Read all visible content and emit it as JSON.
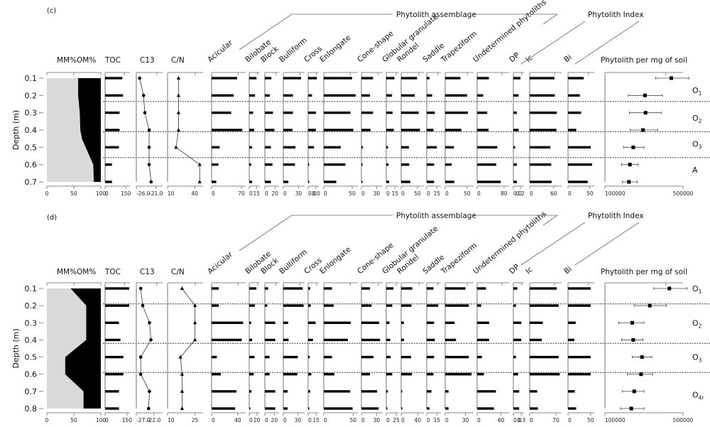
{
  "figure": {
    "panels": [
      "(c)",
      "(d)"
    ],
    "y_axis_label": "Depth (m)",
    "group_labels": {
      "assemblage": "Phytolith assemblage",
      "index": "Phytolith Index"
    },
    "colors": {
      "mm_fill": "#d9d9d9",
      "om_fill": "#000000",
      "axis": "#888888",
      "bar": "#000000"
    }
  },
  "chart_data": [
    {
      "panel": "(c)",
      "type": "stratigraphic-multi-panel",
      "y_label": "Depth (m)",
      "depths": [
        0.1,
        0.2,
        0.3,
        0.4,
        0.5,
        0.6,
        0.7
      ],
      "zone_boundaries": [
        0.235,
        0.41,
        0.56
      ],
      "zones": [
        {
          "label": "O",
          "sub": "1",
          "depth": 0.17
        },
        {
          "label": "O",
          "sub": "2",
          "depth": 0.33
        },
        {
          "label": "O",
          "sub": "3",
          "depth": 0.48
        },
        {
          "label": "A",
          "sub": "",
          "depth": 0.63
        }
      ],
      "om_mm": {
        "title_mm": "MM%",
        "title_om": "OM%",
        "ticks": [
          "0",
          "50",
          "100"
        ],
        "om_percent": [
          42,
          42,
          39,
          38,
          35,
          28,
          14,
          13
        ],
        "om_depths": [
          0.1,
          0.2,
          0.3,
          0.4,
          0.45,
          0.5,
          0.6,
          0.7
        ]
      },
      "columns": [
        {
          "name": "TOC",
          "type": "bar",
          "ticks": [
            "0",
            "150"
          ],
          "max": 180,
          "values": [
            125,
            130,
            105,
            105,
            100,
            50,
            50
          ]
        },
        {
          "name": "C13",
          "type": "line-circle",
          "ticks": [
            "-26.0",
            "-21.0"
          ],
          "min": -27,
          "max": -19,
          "values": [
            -26.0,
            -24.8,
            -24.4,
            -23.1,
            -23.1,
            -23.1,
            -22.5
          ]
        },
        {
          "name": "C/N",
          "type": "line-triangle",
          "ticks": [
            "10",
            "40"
          ],
          "min": 8,
          "max": 50,
          "values": [
            21,
            21,
            21,
            21,
            18,
            46,
            46
          ]
        },
        {
          "name": "Acicular",
          "type": "bar",
          "ticks": [
            "0",
            "70"
          ],
          "max": 80,
          "values": [
            60,
            52,
            46,
            72,
            19,
            16,
            11
          ]
        },
        {
          "name": "Bilobate",
          "type": "bar",
          "ticks": [
            "0",
            "15"
          ],
          "max": 22,
          "values": [
            15,
            12,
            8,
            10,
            6,
            4,
            6
          ]
        },
        {
          "name": "Block",
          "type": "bar",
          "ticks": [
            "0",
            "20"
          ],
          "max": 28,
          "values": [
            13,
            10,
            16,
            19,
            12,
            15,
            12
          ]
        },
        {
          "name": "Bulliform",
          "type": "bar",
          "ticks": [
            "0",
            "30"
          ],
          "max": 42,
          "values": [
            35,
            19,
            19,
            18,
            24,
            23,
            10
          ]
        },
        {
          "name": "Cross",
          "type": "bar",
          "ticks": [
            "0.0",
            "8.0"
          ],
          "max": 11,
          "values": [
            9,
            4,
            8,
            8,
            6,
            0,
            1
          ]
        },
        {
          "name": "Enlongate",
          "type": "bar",
          "ticks": [
            "0",
            "50"
          ],
          "max": 60,
          "values": [
            50,
            56,
            47,
            52,
            30,
            38,
            22
          ]
        },
        {
          "name": "Cone-shape",
          "type": "bar",
          "ticks": [
            "0",
            "30"
          ],
          "max": 42,
          "values": [
            23,
            17,
            23,
            18,
            3,
            0,
            1
          ]
        },
        {
          "name": "Globular granulate",
          "type": "bar",
          "ticks": [
            "0",
            "15"
          ],
          "max": 22,
          "values": [
            14,
            10,
            11,
            13,
            3,
            4,
            5
          ]
        },
        {
          "name": "Rondel",
          "type": "bar",
          "ticks": [
            "0",
            "50"
          ],
          "max": 70,
          "values": [
            49,
            42,
            54,
            58,
            24,
            25,
            28
          ]
        },
        {
          "name": "Saddle",
          "type": "bar",
          "ticks": [
            "0",
            "15"
          ],
          "max": 21,
          "values": [
            4,
            8,
            12,
            10,
            15,
            11,
            11
          ]
        },
        {
          "name": "Trapeziform",
          "type": "bar",
          "ticks": [
            "0",
            "50"
          ],
          "max": 65,
          "values": [
            35,
            50,
            52,
            37,
            20,
            15,
            21
          ]
        },
        {
          "name": "Undetermined phytoliths",
          "type": "bar",
          "ticks": [
            "0",
            "80"
          ],
          "max": 95,
          "values": [
            35,
            18,
            30,
            34,
            60,
            57,
            70
          ]
        },
        {
          "name": "DP",
          "type": "bar",
          "ticks": [
            "0.0",
            "0.2"
          ],
          "max": 0.3,
          "values": [
            0.2,
            0.15,
            0.1,
            0.15,
            0.05,
            0.1,
            0.1
          ]
        },
        {
          "name": "Ic",
          "type": "bar",
          "ticks": [
            "0",
            "60"
          ],
          "max": 80,
          "values": [
            62,
            63,
            68,
            67,
            52,
            54,
            55
          ]
        },
        {
          "name": "Bi",
          "type": "bar",
          "ticks": [
            "0",
            "50"
          ],
          "max": 60,
          "values": [
            36,
            27,
            30,
            19,
            52,
            55,
            45
          ]
        },
        {
          "name": "Phytolith per mg of soil",
          "type": "errorbar",
          "ticks": [
            "100000",
            "500000"
          ],
          "min": 100000,
          "max": 500000,
          "values": [
            440000,
            305000,
            308000,
            295000,
            245000,
            228000,
            223000
          ],
          "err_low": [
            360000,
            220000,
            225000,
            230000,
            195000,
            185000,
            190000
          ],
          "err_high": [
            530000,
            395000,
            390000,
            370000,
            300000,
            270000,
            265000
          ]
        }
      ]
    },
    {
      "panel": "(d)",
      "type": "stratigraphic-multi-panel",
      "y_label": "Depth (m)",
      "depths": [
        0.1,
        0.2,
        0.3,
        0.4,
        0.5,
        0.6,
        0.7,
        0.8
      ],
      "zone_boundaries": [
        0.19,
        0.42,
        0.59
      ],
      "zones": [
        {
          "label": "O",
          "sub": "1",
          "depth": 0.1
        },
        {
          "label": "O",
          "sub": "2",
          "depth": 0.3
        },
        {
          "label": "O",
          "sub": "3",
          "depth": 0.5
        },
        {
          "label": "O",
          "sub": "4r",
          "depth": 0.72
        }
      ],
      "om_mm": {
        "title_mm": "MM%",
        "title_om": "OM%",
        "ticks": [
          "0",
          "50",
          "100"
        ],
        "om_percent": [
          56,
          27,
          27,
          66,
          66,
          32,
          32,
          32
        ],
        "om_depths": [
          0.1,
          0.2,
          0.4,
          0.5,
          0.6,
          0.7,
          0.8,
          0.8
        ]
      },
      "columns": [
        {
          "name": "TOC",
          "type": "bar",
          "ticks": [
            "0",
            "150"
          ],
          "max": 170,
          "values": [
            165,
            165,
            95,
            105,
            125,
            125,
            95,
            95
          ]
        },
        {
          "name": "C13",
          "type": "line-circle",
          "ticks": [
            "-27.0",
            "-22.0"
          ],
          "min": -28,
          "max": -19,
          "values": [
            -26.5,
            -25.8,
            -23.5,
            -23.0,
            -26.5,
            -26.5,
            -23.5,
            -23.8
          ]
        },
        {
          "name": "C/N",
          "type": "line-triangle",
          "ticks": [
            "10",
            "25"
          ],
          "min": 8,
          "max": 30,
          "values": [
            17,
            25,
            25,
            25,
            16,
            17,
            17,
            17
          ]
        },
        {
          "name": "Acicular",
          "type": "bar",
          "ticks": [
            "0",
            "40"
          ],
          "max": 52,
          "values": [
            11,
            11,
            48,
            46,
            8,
            14,
            38,
            36
          ]
        },
        {
          "name": "Bilobate",
          "type": "bar",
          "ticks": [
            "0",
            "20"
          ],
          "max": 28,
          "values": [
            19,
            15,
            5,
            8,
            14,
            12,
            6,
            2
          ]
        },
        {
          "name": "Block",
          "type": "bar",
          "ticks": [
            "0",
            "20"
          ],
          "max": 30,
          "values": [
            7,
            5,
            22,
            22,
            10,
            10,
            22,
            22
          ]
        },
        {
          "name": "Bulliform",
          "type": "bar",
          "ticks": [
            "0",
            "30"
          ],
          "max": 44,
          "values": [
            40,
            42,
            10,
            11,
            30,
            29,
            9,
            9
          ]
        },
        {
          "name": "Cross",
          "type": "bar",
          "ticks": [
            "0",
            "15"
          ],
          "max": 20,
          "values": [
            4,
            5,
            14,
            9,
            3,
            6,
            4,
            2
          ]
        },
        {
          "name": "Enlongate",
          "type": "bar",
          "ticks": [
            "0",
            "50"
          ],
          "max": 58,
          "values": [
            14,
            17,
            46,
            41,
            14,
            18,
            45,
            49
          ]
        },
        {
          "name": "Cone-shape",
          "type": "bar",
          "ticks": [
            "0",
            "30"
          ],
          "max": 42,
          "values": [
            17,
            20,
            35,
            37,
            24,
            17,
            31,
            34
          ]
        },
        {
          "name": "Globular granulate",
          "type": "bar",
          "ticks": [
            "0",
            "25"
          ],
          "max": 32,
          "values": [
            18,
            15,
            8,
            10,
            11,
            15,
            4,
            2
          ]
        },
        {
          "name": "Rondel",
          "type": "bar",
          "ticks": [
            "0",
            "40"
          ],
          "max": 55,
          "values": [
            27,
            25,
            7,
            7,
            24,
            26,
            2,
            2
          ]
        },
        {
          "name": "Saddle",
          "type": "bar",
          "ticks": [
            "0",
            "15"
          ],
          "max": 21,
          "values": [
            10,
            17,
            11,
            12,
            11,
            10,
            7,
            4
          ]
        },
        {
          "name": "Trapeziform",
          "type": "bar",
          "ticks": [
            "0",
            "30"
          ],
          "max": 42,
          "values": [
            30,
            35,
            14,
            16,
            35,
            39,
            5,
            5
          ]
        },
        {
          "name": "Undetermined phytoliths",
          "type": "bar",
          "ticks": [
            "0",
            "60"
          ],
          "max": 80,
          "values": [
            22,
            10,
            30,
            30,
            12,
            17,
            47,
            42
          ]
        },
        {
          "name": "DP",
          "type": "bar",
          "ticks": [
            "0.0",
            "0.3"
          ],
          "max": 0.4,
          "values": [
            0.15,
            0.1,
            0.3,
            0.3,
            0.1,
            0.18,
            0.22,
            0.22
          ]
        },
        {
          "name": "Ic",
          "type": "bar",
          "ticks": [
            "0",
            "70"
          ],
          "max": 85,
          "values": [
            72,
            77,
            35,
            32,
            77,
            80,
            20,
            22
          ]
        },
        {
          "name": "Bi",
          "type": "bar",
          "ticks": [
            "0",
            "50"
          ],
          "max": 58,
          "values": [
            50,
            50,
            17,
            14,
            50,
            50,
            15,
            18
          ]
        },
        {
          "name": "Phytolith per mg of soil",
          "type": "errorbar",
          "ticks": [
            "100000",
            "500000"
          ],
          "min": 100000,
          "max": 500000,
          "values": [
            430000,
            330000,
            240000,
            245000,
            290000,
            285000,
            250000,
            235000
          ],
          "err_low": [
            350000,
            250000,
            170000,
            185000,
            240000,
            215000,
            190000,
            180000
          ],
          "err_high": [
            520000,
            415000,
            300000,
            295000,
            340000,
            345000,
            300000,
            300000
          ]
        }
      ]
    }
  ]
}
